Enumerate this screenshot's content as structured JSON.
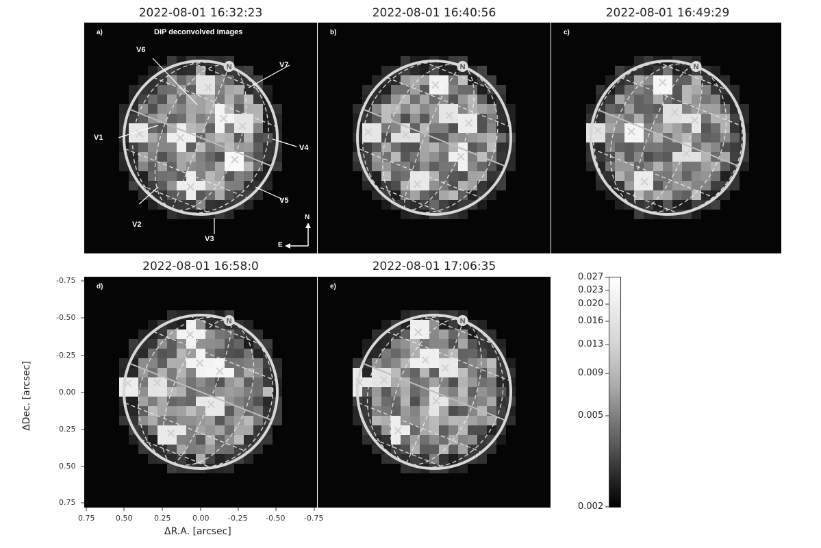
{
  "figure": {
    "banner": "DIP deconvolved images",
    "panels": [
      {
        "letter": "a)",
        "time": "2022-08-01 16:32:23"
      },
      {
        "letter": "b)",
        "time": "2022-08-01 16:40:56"
      },
      {
        "letter": "c)",
        "time": "2022-08-01 16:49:29"
      },
      {
        "letter": "d)",
        "time": "2022-08-01 16:58:0"
      },
      {
        "letter": "e)",
        "time": "2022-08-01 17:06:35"
      }
    ],
    "volcano_labels": [
      "V1",
      "V2",
      "V3",
      "V4",
      "V5",
      "V6",
      "V7"
    ],
    "north_marker": "N",
    "compass": {
      "north": "N",
      "east": "E"
    },
    "x_axis": {
      "label": "ΔR.A. [arcsec]",
      "ticks": [
        "0.75",
        "0.50",
        "0.25",
        "0.00",
        "-0.25",
        "-0.50",
        "-0.75"
      ]
    },
    "y_axis": {
      "label": "ΔDec. [arcsec]",
      "ticks": [
        "-0.75",
        "-0.50",
        "-0.25",
        "0.00",
        "0.25",
        "0.50",
        "0.75"
      ]
    },
    "colorbar": {
      "ticks": [
        "0.027",
        "0.023",
        "0.020",
        "0.016",
        "0.013",
        "0.009",
        "0.005",
        "0.002"
      ],
      "colors": {
        "low": "#000000",
        "high": "#ffffff"
      }
    }
  }
}
